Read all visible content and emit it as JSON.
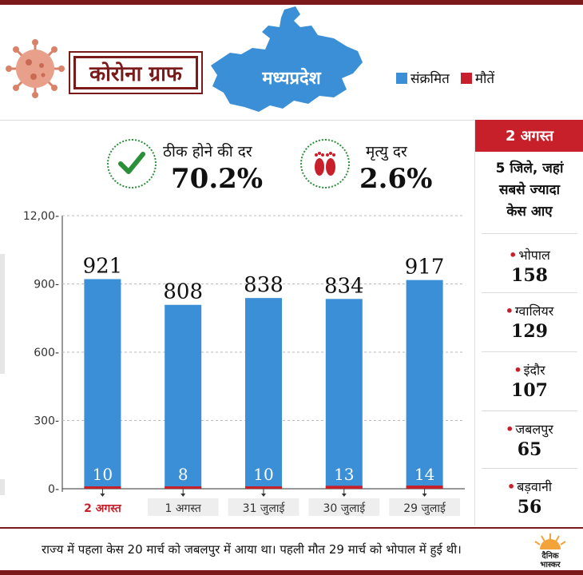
{
  "header": {
    "title": "कोरोना ग्राफ",
    "state": "मध्यप्रदेश",
    "legend": [
      {
        "label": "संक्रमित",
        "color": "#3a8fd6"
      },
      {
        "label": "मौतें",
        "color": "#c8202b"
      }
    ]
  },
  "stats": {
    "recovery_label": "ठीक होने की दर",
    "recovery_value": "70.2%",
    "mortality_label": "मृत्यु दर",
    "mortality_value": "2.6%"
  },
  "side": {
    "date": "2 अगस्त",
    "title_lines": [
      "5 जिले, जहां",
      "सबसे ज्यादा",
      "केस आए"
    ],
    "districts": [
      {
        "name": "भोपाल",
        "value": "158"
      },
      {
        "name": "ग्वालियर",
        "value": "129"
      },
      {
        "name": "इंदौर",
        "value": "107"
      },
      {
        "name": "जबलपुर",
        "value": "65"
      },
      {
        "name": "बड़वानी",
        "value": "56"
      }
    ]
  },
  "chart_data": {
    "type": "bar",
    "categories": [
      "2 अगस्त",
      "1 अगस्त",
      "31 जुलाई",
      "30 जुलाई",
      "29 जुलाई"
    ],
    "highlight_category": 0,
    "series": [
      {
        "name": "संक्रमित",
        "values": [
          921,
          808,
          838,
          834,
          917
        ],
        "color": "#3a8fd6"
      },
      {
        "name": "मौतें",
        "values": [
          10,
          8,
          10,
          13,
          14
        ],
        "color": "#c8202b"
      }
    ],
    "ylim": [
      0,
      1200
    ],
    "yticks": [
      0,
      300,
      600,
      900,
      1200
    ],
    "ytick_labels": [
      "0-",
      "300-",
      "600-",
      "900-",
      "12,00-"
    ],
    "grid": true
  },
  "footer": {
    "note": "राज्य में पहला केस 20 मार्च को जबलपुर में आया था। पहली मौत 29 मार्च को भोपाल में हुई थी।",
    "logo_text_1": "दैनिक",
    "logo_text_2": "भास्कर"
  }
}
